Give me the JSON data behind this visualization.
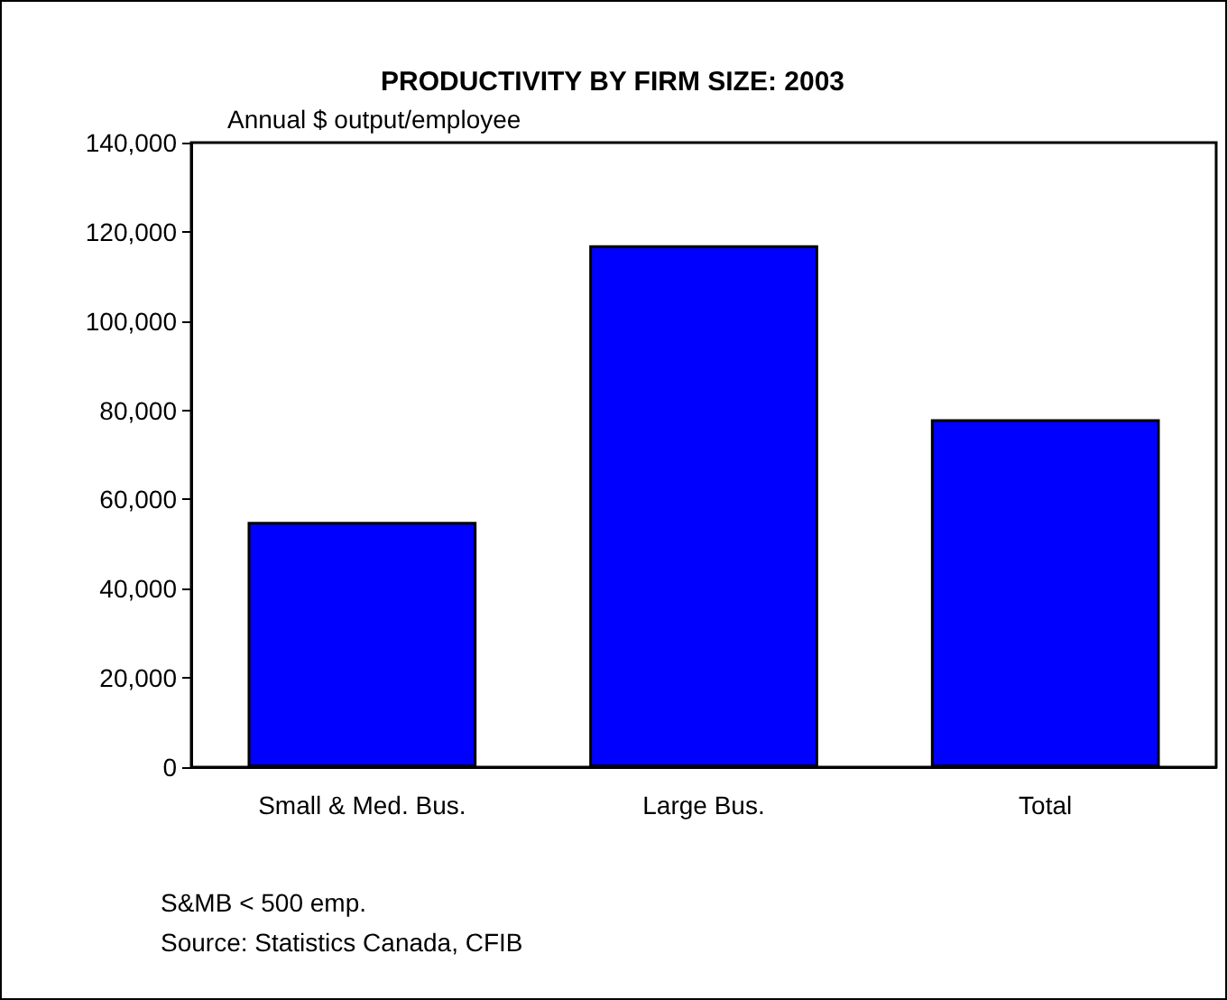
{
  "chart_data": {
    "type": "bar",
    "title": "PRODUCTIVITY BY FIRM SIZE: 2003",
    "ylabel": "Annual $ output/employee",
    "categories": [
      "Small & Med. Bus.",
      "Large Bus.",
      "Total"
    ],
    "values": [
      55000,
      117000,
      78000
    ],
    "color": "#0000ff",
    "ylim": [
      0,
      140000
    ],
    "yticks": [
      0,
      {
        "value": 20000,
        "label": "20,000"
      },
      {
        "value": 40000,
        "label": "40,000"
      },
      {
        "value": 60000,
        "label": "60,000"
      },
      {
        "value": 80000,
        "label": "80,000"
      },
      {
        "value": 100000,
        "label": "100,000"
      },
      {
        "value": 120000,
        "label": "120,000"
      },
      {
        "value": 140000,
        "label": "140,000"
      }
    ],
    "grid": false,
    "annotations": [
      "S&MB < 500 emp.",
      "Source: Statistics Canada, CFIB"
    ]
  }
}
